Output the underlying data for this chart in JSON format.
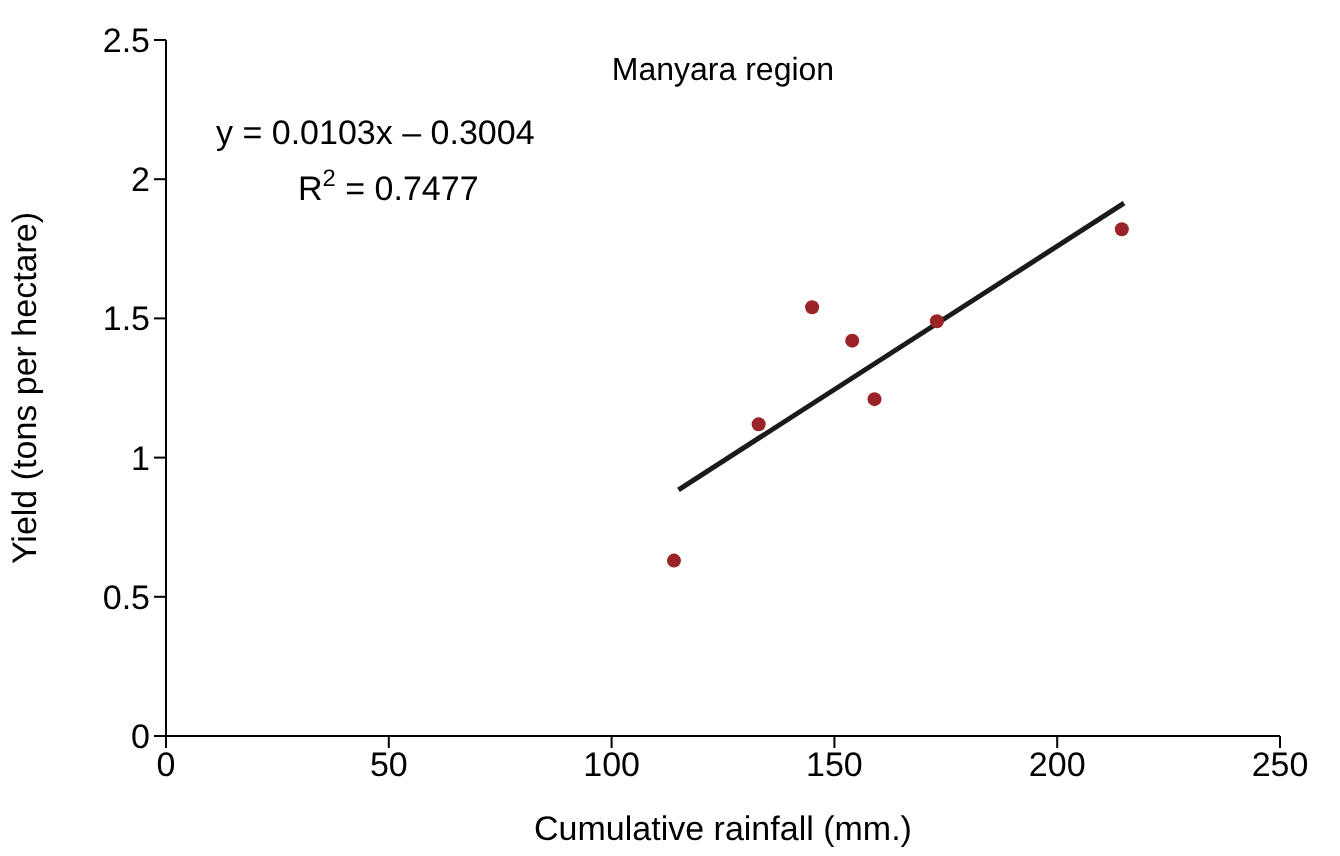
{
  "chart_data": {
    "type": "scatter",
    "title": "Manyara region",
    "xlabel": "Cumulative rainfall (mm.)",
    "ylabel": "Yield (tons per hectare)",
    "annotations": [
      "y = 0.0103x – 0.3004",
      "R$^{2}$ = 0.7477"
    ],
    "xlim": [
      0,
      250
    ],
    "xticks": [
      0,
      50,
      100,
      150,
      200,
      250
    ],
    "ylim": [
      0,
      2.5
    ],
    "yticks": [
      0,
      0.5,
      1,
      1.5,
      2,
      2.5
    ],
    "grid": false,
    "legend": false,
    "series": [
      {
        "marker": "circle",
        "color": "#9b2226",
        "x": [
          114,
          133,
          145,
          154,
          159,
          173,
          214.5
        ],
        "values": [
          0.63,
          1.12,
          1.54,
          1.42,
          1.21,
          1.49,
          1.82
        ]
      },
      {
        "type": "line",
        "color": "#1a1a1a",
        "x": [
          115,
          215
        ],
        "values": [
          0.884,
          1.914
        ]
      }
    ]
  }
}
